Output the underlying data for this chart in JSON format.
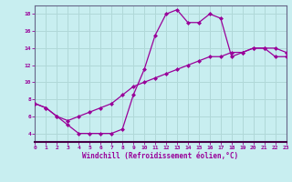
{
  "xlabel": "Windchill (Refroidissement éolien,°C)",
  "bg_color": "#c8eef0",
  "grid_color": "#b0d8d8",
  "line_color": "#990099",
  "marker_color": "#990099",
  "x_min": 0,
  "x_max": 23,
  "y_min": 3,
  "y_max": 19,
  "y_ticks": [
    4,
    6,
    8,
    10,
    12,
    14,
    16,
    18
  ],
  "x_ticks": [
    0,
    1,
    2,
    3,
    4,
    5,
    6,
    7,
    8,
    9,
    10,
    11,
    12,
    13,
    14,
    15,
    16,
    17,
    18,
    19,
    20,
    21,
    22,
    23
  ],
  "curve1_x": [
    0,
    1,
    2,
    3,
    4,
    5,
    6,
    7,
    8,
    9,
    10,
    11,
    12,
    13,
    14,
    15,
    16,
    17,
    18,
    19,
    20,
    21,
    22,
    23
  ],
  "curve1_y": [
    7.5,
    7.0,
    6.0,
    5.0,
    4.0,
    4.0,
    4.0,
    4.0,
    4.5,
    8.5,
    11.5,
    15.5,
    18.0,
    18.5,
    17.0,
    17.0,
    18.0,
    17.5,
    13.0,
    13.5,
    14.0,
    14.0,
    14.0,
    13.5
  ],
  "curve2_x": [
    0,
    1,
    2,
    3,
    4,
    5,
    6,
    7,
    8,
    9,
    10,
    11,
    12,
    13,
    14,
    15,
    16,
    17,
    18,
    19,
    20,
    21,
    22,
    23
  ],
  "curve2_y": [
    7.5,
    7.0,
    6.0,
    5.5,
    6.0,
    6.5,
    7.0,
    7.5,
    8.5,
    9.5,
    10.0,
    10.5,
    11.0,
    11.5,
    12.0,
    12.5,
    13.0,
    13.0,
    13.5,
    13.5,
    14.0,
    14.0,
    13.0,
    13.0
  ]
}
